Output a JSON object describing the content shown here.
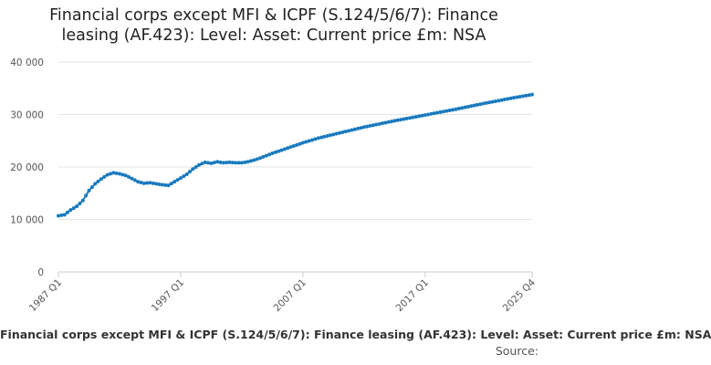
{
  "chart_data": {
    "type": "line",
    "title_lines": [
      "Financial corps except MFI & ICPF (S.124/5/6/7): Finance",
      "leasing (AF.423): Level: Asset: Current price £m: NSA"
    ],
    "xlabel": "",
    "ylabel": "",
    "ylim": [
      0,
      40000
    ],
    "y_ticks": [
      0,
      10000,
      20000,
      30000,
      40000
    ],
    "y_tick_labels": [
      "0",
      "10 000",
      "20 000",
      "30 000",
      "40 000"
    ],
    "x_tick_labels": [
      "1987 Q1",
      "1997 Q1",
      "2007 Q1",
      "2017 Q1",
      "2025 Q4"
    ],
    "x_tick_index": [
      0,
      40,
      80,
      120,
      155
    ],
    "grid": true,
    "color": "#1a7abf",
    "series": [
      {
        "name": "Financial corps except MFI & ICPF (S.124/5/6/7): Finance leasing (AF.423): Level: Asset: Current price £m: NSA",
        "anchors": [
          [
            0,
            10700
          ],
          [
            2,
            10900
          ],
          [
            4,
            11800
          ],
          [
            6,
            12500
          ],
          [
            8,
            13600
          ],
          [
            10,
            15500
          ],
          [
            12,
            16800
          ],
          [
            14,
            17700
          ],
          [
            16,
            18500
          ],
          [
            18,
            18900
          ],
          [
            20,
            18700
          ],
          [
            22,
            18400
          ],
          [
            24,
            17800
          ],
          [
            26,
            17200
          ],
          [
            28,
            16900
          ],
          [
            30,
            17000
          ],
          [
            32,
            16800
          ],
          [
            34,
            16600
          ],
          [
            36,
            16500
          ],
          [
            38,
            17200
          ],
          [
            40,
            17900
          ],
          [
            42,
            18600
          ],
          [
            44,
            19600
          ],
          [
            46,
            20400
          ],
          [
            48,
            20900
          ],
          [
            50,
            20700
          ],
          [
            52,
            21000
          ],
          [
            54,
            20800
          ],
          [
            56,
            20900
          ],
          [
            58,
            20800
          ],
          [
            60,
            20800
          ],
          [
            62,
            21000
          ],
          [
            64,
            21300
          ],
          [
            66,
            21700
          ],
          [
            70,
            22600
          ],
          [
            75,
            23600
          ],
          [
            80,
            24600
          ],
          [
            85,
            25500
          ],
          [
            90,
            26200
          ],
          [
            100,
            27600
          ],
          [
            110,
            28800
          ],
          [
            120,
            29900
          ],
          [
            130,
            31000
          ],
          [
            140,
            32200
          ],
          [
            150,
            33300
          ],
          [
            155,
            33800
          ]
        ]
      }
    ]
  },
  "legend_text": "Financial corps except MFI & ICPF (S.124/5/6/7): Finance leasing (AF.423): Level: Asset: Current price £m: NSA",
  "source_text": "Source:"
}
